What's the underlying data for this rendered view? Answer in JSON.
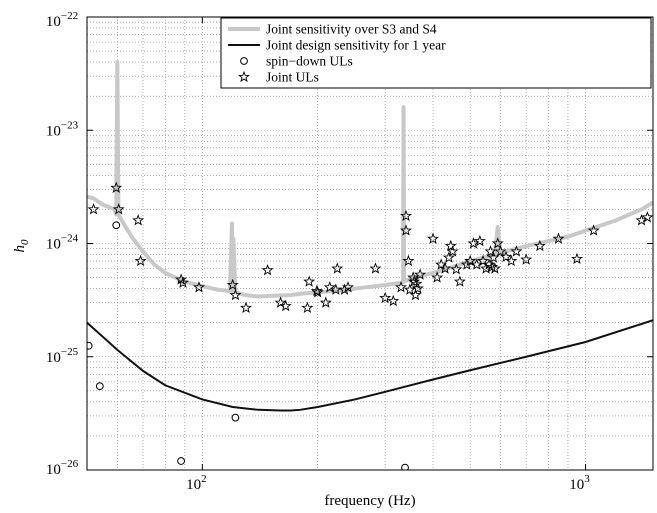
{
  "chart_data": {
    "type": "scatter",
    "title": "",
    "xlabel": "frequency (Hz)",
    "ylabel_main": "h",
    "ylabel_sub": "0",
    "xscale": "log",
    "yscale": "log",
    "xlim": [
      50,
      1500
    ],
    "ylim": [
      1e-26,
      1e-22
    ],
    "grid": true,
    "legend_position": "top-right",
    "x_ticks": [
      {
        "value": 100,
        "base": "10",
        "exp": "2"
      },
      {
        "value": 1000,
        "base": "10",
        "exp": "3"
      }
    ],
    "y_ticks": [
      {
        "value": 1e-22,
        "base": "10",
        "exp": "−22"
      },
      {
        "value": 1e-23,
        "base": "10",
        "exp": "−23"
      },
      {
        "value": 1e-24,
        "base": "10",
        "exp": "−24"
      },
      {
        "value": 1e-25,
        "base": "10",
        "exp": "−25"
      },
      {
        "value": 1e-26,
        "base": "10",
        "exp": "−26"
      }
    ],
    "colors": {
      "joint_sensitivity": "#c8c8c8",
      "design": "#111111",
      "markers": "#000000"
    },
    "legend": [
      {
        "label": "Joint sensitivity over S3 and S4",
        "marker": "gray-line"
      },
      {
        "label": "Joint design sensitivity for 1 year",
        "marker": "black-line"
      },
      {
        "label": "spin−down ULs",
        "marker": "circle"
      },
      {
        "label": "Joint ULs",
        "marker": "star"
      }
    ],
    "series": [
      {
        "name": "Joint sensitivity over S3 and S4",
        "style": "line",
        "x": [
          50,
          52,
          55,
          57,
          59,
          59.6,
          60,
          60.4,
          61,
          63,
          66,
          70,
          75,
          80,
          90,
          100,
          110,
          118,
          119.5,
          120,
          120.5,
          122,
          130,
          140,
          150,
          170,
          180,
          200,
          240,
          250,
          300,
          330,
          334,
          335,
          336,
          340,
          345,
          350,
          400,
          450,
          500,
          550,
          580,
          590,
          600,
          620,
          700,
          800,
          850,
          900,
          1000,
          1100,
          1200,
          1300,
          1400,
          1500
        ],
        "y": [
          2.6e-24,
          2.5e-24,
          2.2e-24,
          2.1e-24,
          2e-24,
          1.8e-24,
          4e-23,
          1.8e-24,
          1.7e-24,
          1.4e-24,
          1.1e-24,
          8.5e-25,
          6.5e-25,
          5.5e-25,
          4.6e-25,
          4.2e-25,
          3.9e-25,
          3.8e-25,
          1.5e-24,
          3.8e-25,
          1.1e-24,
          3.7e-25,
          3.5e-25,
          3.4e-25,
          3.45e-25,
          3.5e-25,
          3.6e-25,
          3.7e-25,
          3.9e-25,
          4e-25,
          4.3e-25,
          4.5e-25,
          4.6e-25,
          1.6e-23,
          4.6e-25,
          4.7e-25,
          4.8e-25,
          4.9e-25,
          5.5e-25,
          6.2e-25,
          7e-25,
          7.6e-25,
          8e-25,
          1.4e-24,
          8.2e-25,
          8.5e-25,
          9.5e-25,
          1.05e-24,
          1.1e-24,
          1.15e-24,
          1.3e-24,
          1.45e-24,
          1.6e-24,
          1.8e-24,
          2e-24,
          2.3e-24
        ]
      },
      {
        "name": "Joint design sensitivity for 1 year",
        "style": "line",
        "x": [
          50,
          55,
          60,
          70,
          80,
          100,
          120,
          140,
          160,
          170,
          180,
          200,
          250,
          300,
          400,
          500,
          700,
          1000,
          1500
        ],
        "y": [
          2e-25,
          1.5e-25,
          1.15e-25,
          7.5e-26,
          5.6e-26,
          4.2e-26,
          3.6e-26,
          3.4e-26,
          3.35e-26,
          3.35e-26,
          3.4e-26,
          3.6e-26,
          4.2e-26,
          4.9e-26,
          6.3e-26,
          7.6e-26,
          1e-25,
          1.35e-25,
          2.1e-25
        ]
      },
      {
        "name": "spin−down ULs",
        "style": "circle",
        "x": [
          50.5,
          54,
          59.6,
          88,
          122,
          338
        ],
        "y": [
          1.25e-25,
          5.5e-26,
          1.45e-24,
          1.2e-26,
          2.9e-26,
          1.05e-26
        ]
      },
      {
        "name": "Joint ULs",
        "style": "star",
        "x": [
          52,
          59.6,
          60.5,
          68,
          69,
          88,
          89,
          98,
          120,
          122,
          130,
          148,
          160,
          165,
          188,
          190,
          199,
          200,
          210,
          215,
          223,
          225,
          235,
          240,
          283,
          300,
          315,
          330,
          340,
          340,
          345,
          348,
          355,
          357,
          360,
          362,
          365,
          370,
          400,
          410,
          420,
          430,
          440,
          445,
          450,
          460,
          470,
          490,
          500,
          510,
          520,
          530,
          540,
          550,
          560,
          565,
          570,
          575,
          580,
          590,
          600,
          620,
          640,
          660,
          700,
          760,
          850,
          950,
          1050,
          1400,
          1450
        ],
        "y": [
          2e-24,
          3.1e-24,
          2e-24,
          1.6e-24,
          7e-25,
          4.8e-25,
          4.5e-25,
          4.1e-25,
          4.3e-25,
          3.5e-25,
          2.7e-25,
          5.8e-25,
          3e-25,
          2.8e-25,
          2.7e-25,
          4.6e-25,
          3.8e-25,
          3.7e-25,
          3e-25,
          4.1e-25,
          3.9e-25,
          6e-25,
          3.9e-25,
          4.1e-25,
          6e-25,
          3.3e-25,
          3.1e-25,
          4.1e-25,
          1.75e-24,
          1.3e-24,
          7e-25,
          3.9e-25,
          5e-25,
          4.6e-25,
          3.5e-25,
          4.4e-25,
          4e-25,
          5.3e-25,
          1.1e-24,
          5e-25,
          6.5e-25,
          6e-25,
          7.5e-25,
          9.5e-25,
          8.5e-25,
          5.9e-25,
          4.6e-25,
          6.5e-25,
          7e-25,
          1e-24,
          6.5e-25,
          1.05e-24,
          7e-25,
          6e-25,
          6.5e-25,
          8.5e-25,
          6.2e-25,
          7.5e-25,
          6e-25,
          1e-24,
          8.5e-25,
          7.6e-25,
          7e-25,
          8.5e-25,
          7.2e-25,
          9.5e-25,
          1.1e-24,
          7.3e-25,
          1.3e-24,
          1.6e-24,
          1.7e-24
        ]
      }
    ]
  }
}
